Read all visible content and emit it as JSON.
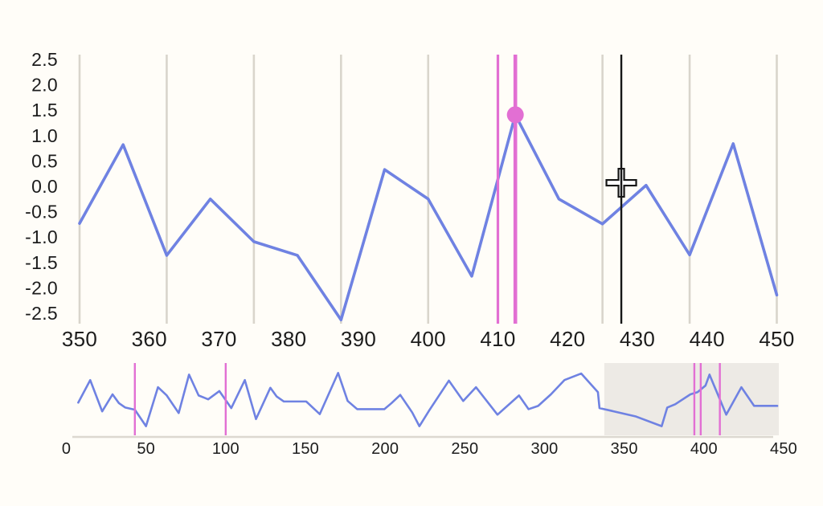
{
  "colors": {
    "page_background": "#fffdf8",
    "series_blue": "#6f82e2",
    "event_pink": "#e26fd3",
    "gridline_gray": "#d9d5cc",
    "cursor_black": "#161616",
    "axis_label": "#1c1c1c",
    "navigator_shade": "#edeae5",
    "navigator_axis_line": "#dcd8d0",
    "crosshair_fill": "#ffffff"
  },
  "chart_data": [
    {
      "type": "line",
      "role": "main-detail-chart",
      "title": "",
      "xlabel": "",
      "ylabel": "",
      "x_range": [
        350,
        450
      ],
      "y_range": [
        -2.5,
        2.5
      ],
      "grid": "vertical-only",
      "legend": "none",
      "x_tick_labels": [
        "350",
        "360",
        "370",
        "380",
        "390",
        "400",
        "410",
        "420",
        "430",
        "440",
        "450"
      ],
      "x_tick_values": [
        350,
        360,
        370,
        380,
        390,
        400,
        410,
        420,
        430,
        440,
        450
      ],
      "y_tick_labels": [
        "2.5",
        "2.0",
        "1.5",
        "1.0",
        "0.5",
        "0.0",
        "-0.5",
        "-1.0",
        "-1.5",
        "-2.0",
        "-2.5"
      ],
      "y_tick_values": [
        2.5,
        2.0,
        1.5,
        1.0,
        0.5,
        0.0,
        -0.5,
        -1.0,
        -1.5,
        -2.0,
        -2.5
      ],
      "gridline_x_values": [
        350,
        362.5,
        375,
        387.5,
        400,
        412.5,
        425,
        437.5,
        450
      ],
      "series": [
        {
          "name": "signal",
          "x": [
            350,
            356.25,
            362.5,
            368.75,
            375,
            381.25,
            387.5,
            393.75,
            400,
            406.25,
            412.5,
            418.75,
            425,
            431.25,
            437.5,
            443.75,
            450
          ],
          "y": [
            -0.73,
            0.82,
            -1.36,
            -0.25,
            -1.09,
            -1.36,
            -2.63,
            0.33,
            -0.25,
            -1.77,
            1.41,
            -0.25,
            -0.74,
            0.02,
            -1.35,
            0.84,
            -2.14
          ]
        }
      ],
      "event_lines": [
        {
          "x": 410,
          "style": "thin"
        },
        {
          "x": 412.5,
          "style": "thick"
        }
      ],
      "highlight_point": {
        "x": 412.5,
        "y": 1.41
      },
      "cursor": {
        "x": 427.7,
        "y": 0.07
      }
    },
    {
      "type": "line",
      "role": "overview-navigator-chart",
      "x_range": [
        0,
        450
      ],
      "y_range": [
        -3,
        3
      ],
      "x_tick_labels": [
        "0",
        "50",
        "100",
        "150",
        "200",
        "250",
        "300",
        "350",
        "400",
        "450"
      ],
      "x_tick_values": [
        0,
        50,
        100,
        150,
        200,
        250,
        300,
        350,
        400,
        450
      ],
      "selection_window": {
        "start": 337.5,
        "end": 447
      },
      "event_lines_x": [
        43,
        100,
        394,
        398,
        410
      ],
      "series": [
        {
          "name": "signal-overview",
          "x": [
            7.5,
            15,
            22.5,
            29,
            33,
            37,
            43,
            50,
            57.5,
            63,
            70.5,
            77,
            83,
            89,
            96,
            103.5,
            112,
            119,
            128,
            132,
            136.5,
            150.5,
            159,
            170.5,
            176.5,
            182.5,
            199.5,
            204,
            209.5,
            217,
            221.5,
            227.5,
            240,
            249,
            257,
            270.5,
            284,
            290,
            296,
            304,
            312.5,
            323,
            333.5,
            334.5,
            357,
            373.5,
            377,
            382,
            391.5,
            396,
            401,
            403.5,
            414,
            423.5,
            431.5,
            446
          ],
          "y": [
            -0.15,
            1.9,
            -0.95,
            0.6,
            -0.2,
            -0.6,
            -0.8,
            -2.3,
            1.25,
            0.5,
            -1.1,
            2.4,
            0.5,
            0.15,
            0.9,
            -0.65,
            1.9,
            -1.65,
            1.2,
            0.4,
            -0.05,
            -0.05,
            -1.2,
            2.55,
            0.0,
            -0.75,
            -0.75,
            -0.2,
            0.55,
            -1.05,
            -2.3,
            -0.9,
            1.85,
            0.0,
            1.25,
            -1.25,
            0.5,
            -0.75,
            -0.45,
            0.6,
            1.9,
            2.5,
            0.8,
            -0.65,
            -1.4,
            -2.3,
            -0.6,
            -0.3,
            0.6,
            0.8,
            1.4,
            2.4,
            -1.25,
            1.25,
            -0.45,
            -0.45
          ]
        }
      ]
    }
  ]
}
